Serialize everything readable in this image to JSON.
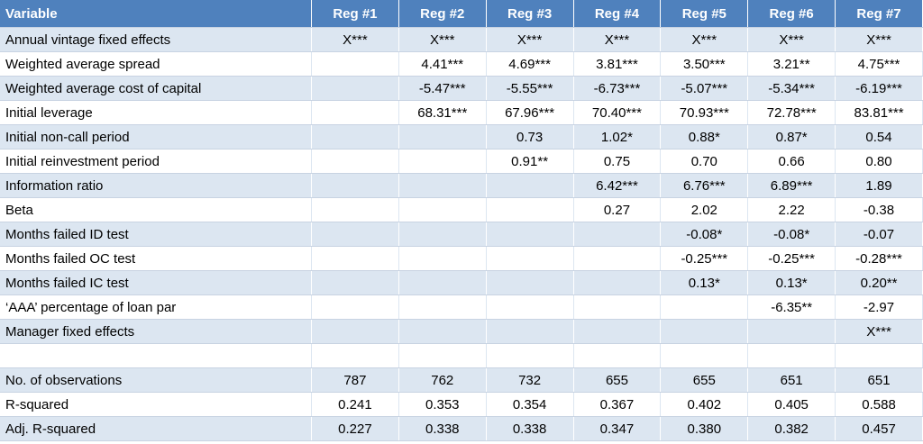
{
  "table": {
    "header": [
      "Variable",
      "Reg #1",
      "Reg #2",
      "Reg #3",
      "Reg #4",
      "Reg #5",
      "Reg #6",
      "Reg #7"
    ],
    "rows": [
      [
        "Annual vintage fixed effects",
        "X***",
        "X***",
        "X***",
        "X***",
        "X***",
        "X***",
        "X***"
      ],
      [
        "Weighted average spread",
        null,
        "4.41***",
        "4.69***",
        "3.81***",
        "3.50***",
        "3.21**",
        "4.75***"
      ],
      [
        "Weighted average cost of capital",
        null,
        "-5.47***",
        "-5.55***",
        "-6.73***",
        "-5.07***",
        "-5.34***",
        "-6.19***"
      ],
      [
        "Initial leverage",
        null,
        "68.31***",
        "67.96***",
        "70.40***",
        "70.93***",
        "72.78***",
        "83.81***"
      ],
      [
        "Initial non-call period",
        null,
        null,
        "0.73",
        "1.02*",
        "0.88*",
        "0.87*",
        "0.54"
      ],
      [
        "Initial reinvestment period",
        null,
        null,
        "0.91**",
        "0.75",
        "0.70",
        "0.66",
        "0.80"
      ],
      [
        "Information ratio",
        null,
        null,
        null,
        "6.42***",
        "6.76***",
        "6.89***",
        "1.89"
      ],
      [
        "Beta",
        null,
        null,
        null,
        "0.27",
        "2.02",
        "2.22",
        "-0.38"
      ],
      [
        "Months failed ID test",
        null,
        null,
        null,
        null,
        "-0.08*",
        "-0.08*",
        "-0.07"
      ],
      [
        "Months failed OC test",
        null,
        null,
        null,
        null,
        "-0.25***",
        "-0.25***",
        "-0.28***"
      ],
      [
        "Months failed IC test",
        null,
        null,
        null,
        null,
        "0.13*",
        "0.13*",
        "0.20**"
      ],
      [
        "‘AAA’ percentage of loan par",
        null,
        null,
        null,
        null,
        null,
        "-6.35**",
        "-2.97"
      ],
      [
        "Manager fixed effects",
        null,
        null,
        null,
        null,
        null,
        null,
        "X***"
      ],
      [
        null,
        null,
        null,
        null,
        null,
        null,
        null,
        null
      ],
      [
        "No. of observations",
        "787",
        "762",
        "732",
        "655",
        "655",
        "651",
        "651"
      ],
      [
        "R-squared",
        "0.241",
        "0.353",
        "0.354",
        "0.367",
        "0.402",
        "0.405",
        "0.588"
      ],
      [
        "Adj. R-squared",
        "0.227",
        "0.338",
        "0.338",
        "0.347",
        "0.380",
        "0.382",
        "0.457"
      ]
    ]
  }
}
